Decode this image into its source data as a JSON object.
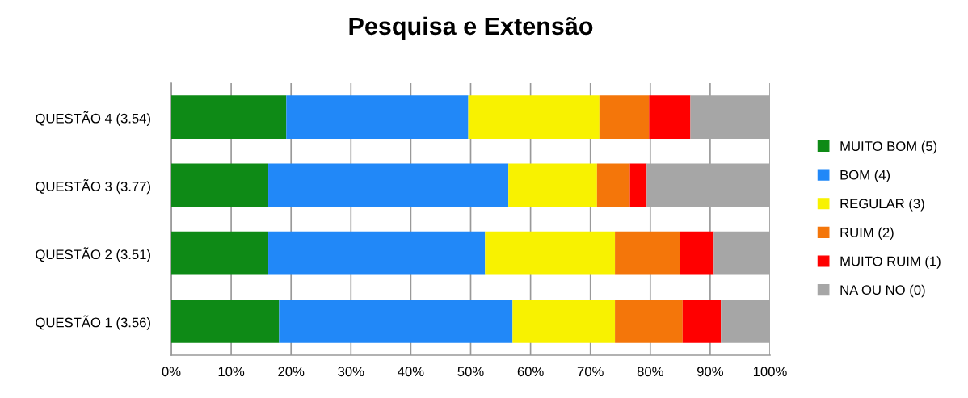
{
  "chart_data": {
    "type": "bar",
    "orientation": "horizontal",
    "stacked": true,
    "title": "Pesquisa e Extensão",
    "categories": [
      "QUESTÃO 4 (3.54)",
      "QUESTÃO 3 (3.77)",
      "QUESTÃO 2 (3.51)",
      "QUESTÃO 1 (3.56)"
    ],
    "series": [
      {
        "name": "MUITO BOM (5)",
        "color": "#0e8a16",
        "values": [
          19.2,
          16.2,
          16.2,
          18.0
        ]
      },
      {
        "name": "BOM (4)",
        "color": "#2188f8",
        "values": [
          30.4,
          40.1,
          36.2,
          39.0
        ]
      },
      {
        "name": "REGULAR (3)",
        "color": "#f8f200",
        "values": [
          21.9,
          14.8,
          21.7,
          17.1
        ]
      },
      {
        "name": "RUIM (2)",
        "color": "#f4760a",
        "values": [
          8.3,
          5.5,
          10.8,
          11.3
        ]
      },
      {
        "name": "MUITO RUIM (1)",
        "color": "#ff0000",
        "values": [
          6.9,
          2.8,
          5.7,
          6.4
        ]
      },
      {
        "name": "NA OU NO (0)",
        "color": "#a6a6a6",
        "values": [
          13.3,
          20.6,
          9.4,
          8.2
        ]
      }
    ],
    "xlim": [
      0,
      100
    ],
    "xticks": [
      {
        "value": 0,
        "label": "0%"
      },
      {
        "value": 10,
        "label": "10%"
      },
      {
        "value": 20,
        "label": "20%"
      },
      {
        "value": 30,
        "label": "30%"
      },
      {
        "value": 40,
        "label": "40%"
      },
      {
        "value": 50,
        "label": "50%"
      },
      {
        "value": 60,
        "label": "60%"
      },
      {
        "value": 70,
        "label": "70%"
      },
      {
        "value": 80,
        "label": "80%"
      },
      {
        "value": 90,
        "label": "90%"
      },
      {
        "value": 100,
        "label": "100%"
      }
    ],
    "grid": "x",
    "legend": "right"
  }
}
